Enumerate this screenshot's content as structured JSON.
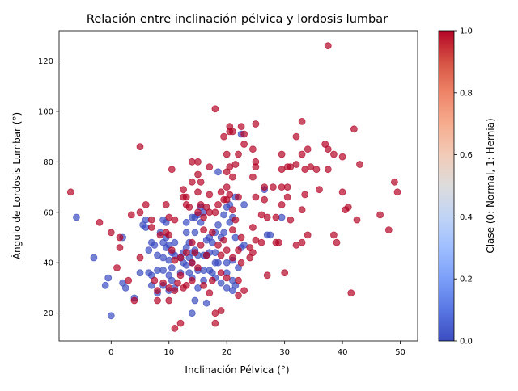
{
  "chart_data": {
    "type": "scatter",
    "title": "Relación entre inclinación pélvica y lordosis lumbar",
    "xlabel": "Inclinación Pélvica (°)",
    "ylabel": "Ángulo de Lordosis Lumbar (°)",
    "xlim": [
      -9,
      53
    ],
    "ylim": [
      9,
      132
    ],
    "xticks": [
      0,
      10,
      20,
      30,
      40,
      50
    ],
    "yticks": [
      20,
      40,
      60,
      80,
      100,
      120
    ],
    "grid": false,
    "colormap": "coolwarm",
    "point_alpha": 0.7,
    "colorbar": {
      "label": "Clase (0: Normal, 1: Hernia)",
      "range": [
        0,
        1
      ],
      "ticks": [
        "0.0",
        "0.2",
        "0.4",
        "0.6",
        "0.8",
        "1.0"
      ],
      "low_color": "#3b4cc0",
      "high_color": "#b40426"
    },
    "series": [
      {
        "name": "0",
        "color": "#3b4cc0",
        "points": [
          [
            -6,
            58
          ],
          [
            -3,
            42
          ],
          [
            -1,
            31
          ],
          [
            -0.5,
            34
          ],
          [
            0,
            19
          ],
          [
            2,
            50
          ],
          [
            2,
            32
          ],
          [
            2.5,
            30
          ],
          [
            4,
            26
          ],
          [
            5,
            36
          ],
          [
            5.5,
            55
          ],
          [
            6,
            57
          ],
          [
            6,
            54
          ],
          [
            6.5,
            45
          ],
          [
            6.5,
            36
          ],
          [
            7,
            48
          ],
          [
            7,
            35
          ],
          [
            7,
            31
          ],
          [
            7.5,
            47
          ],
          [
            8,
            43
          ],
          [
            8,
            37
          ],
          [
            8,
            28
          ],
          [
            8.5,
            52
          ],
          [
            9,
            57
          ],
          [
            9,
            48
          ],
          [
            9,
            42
          ],
          [
            9,
            31
          ],
          [
            9.5,
            56
          ],
          [
            9.5,
            50
          ],
          [
            9.5,
            46
          ],
          [
            10,
            47
          ],
          [
            10,
            41
          ],
          [
            10,
            35
          ],
          [
            10,
            29
          ],
          [
            10.5,
            44
          ],
          [
            10.5,
            38
          ],
          [
            10.5,
            33
          ],
          [
            11,
            43
          ],
          [
            11,
            30
          ],
          [
            12,
            42
          ],
          [
            12,
            36
          ],
          [
            12.5,
            40
          ],
          [
            12.5,
            44
          ],
          [
            13,
            52
          ],
          [
            13,
            46
          ],
          [
            13,
            56
          ],
          [
            13.5,
            48
          ],
          [
            13.5,
            42
          ],
          [
            13.5,
            36
          ],
          [
            14,
            58
          ],
          [
            14,
            44
          ],
          [
            14,
            40
          ],
          [
            14,
            34
          ],
          [
            14,
            20
          ],
          [
            14.5,
            58
          ],
          [
            14.5,
            52
          ],
          [
            14.5,
            45
          ],
          [
            14.5,
            25
          ],
          [
            15,
            59
          ],
          [
            15,
            43
          ],
          [
            15,
            37
          ],
          [
            15,
            30
          ],
          [
            15.5,
            62
          ],
          [
            15.5,
            56
          ],
          [
            16,
            60
          ],
          [
            16,
            43
          ],
          [
            16,
            37
          ],
          [
            16,
            33
          ],
          [
            16.5,
            43
          ],
          [
            16.5,
            24
          ],
          [
            17,
            50
          ],
          [
            17,
            44
          ],
          [
            17,
            37
          ],
          [
            17.5,
            48
          ],
          [
            17.5,
            36
          ],
          [
            18,
            52
          ],
          [
            18,
            44
          ],
          [
            18,
            40
          ],
          [
            18,
            34
          ],
          [
            18.5,
            76
          ],
          [
            18.5,
            55
          ],
          [
            18.5,
            40
          ],
          [
            19,
            50
          ],
          [
            19,
            32
          ],
          [
            19.5,
            59
          ],
          [
            19.5,
            52
          ],
          [
            20,
            62
          ],
          [
            20,
            40
          ],
          [
            20,
            36
          ],
          [
            20,
            30
          ],
          [
            20.5,
            63
          ],
          [
            20.5,
            56
          ],
          [
            21,
            58
          ],
          [
            21,
            41
          ],
          [
            21,
            33
          ],
          [
            21,
            29
          ],
          [
            21.5,
            66
          ],
          [
            21.5,
            50
          ],
          [
            21.5,
            31
          ],
          [
            22,
            38
          ],
          [
            22.5,
            91
          ],
          [
            22.5,
            46
          ],
          [
            23,
            47
          ],
          [
            23,
            63
          ],
          [
            26.5,
            69
          ],
          [
            27,
            51
          ],
          [
            27.5,
            51
          ],
          [
            29.5,
            58
          ],
          [
            16.5,
            49
          ],
          [
            11,
            48
          ],
          [
            13,
            39
          ],
          [
            9,
            37
          ]
        ]
      },
      {
        "name": "1",
        "color": "#b40426",
        "points": [
          [
            -7,
            68
          ],
          [
            -2,
            56
          ],
          [
            0,
            52
          ],
          [
            1,
            38
          ],
          [
            1.5,
            46
          ],
          [
            1.5,
            50
          ],
          [
            3,
            33
          ],
          [
            3.5,
            59
          ],
          [
            4,
            25
          ],
          [
            5,
            86
          ],
          [
            5,
            42
          ],
          [
            5,
            60
          ],
          [
            6,
            63
          ],
          [
            7,
            57
          ],
          [
            7,
            54
          ],
          [
            7.5,
            33
          ],
          [
            8,
            25
          ],
          [
            8,
            29
          ],
          [
            8.5,
            51
          ],
          [
            9,
            32
          ],
          [
            9.5,
            52
          ],
          [
            9.5,
            63
          ],
          [
            10,
            58
          ],
          [
            10,
            51
          ],
          [
            10,
            25
          ],
          [
            10,
            30
          ],
          [
            10.5,
            77
          ],
          [
            10.5,
            45
          ],
          [
            11,
            14
          ],
          [
            11,
            57
          ],
          [
            11,
            29
          ],
          [
            11.5,
            32
          ],
          [
            12,
            16
          ],
          [
            12,
            42
          ],
          [
            12,
            35
          ],
          [
            12.5,
            66
          ],
          [
            12.5,
            69
          ],
          [
            12.5,
            30
          ],
          [
            13,
            66
          ],
          [
            13,
            63
          ],
          [
            13,
            31
          ],
          [
            13.5,
            62
          ],
          [
            14,
            80
          ],
          [
            14,
            48
          ],
          [
            14,
            72
          ],
          [
            14,
            40
          ],
          [
            14.5,
            44
          ],
          [
            15,
            80
          ],
          [
            15,
            68
          ],
          [
            15,
            75
          ],
          [
            15,
            60
          ],
          [
            15,
            38
          ],
          [
            15.5,
            72
          ],
          [
            15.5,
            63
          ],
          [
            15.5,
            47
          ],
          [
            16,
            58
          ],
          [
            16,
            53
          ],
          [
            16,
            31
          ],
          [
            16.5,
            62
          ],
          [
            16.5,
            43
          ],
          [
            17,
            78
          ],
          [
            17,
            67
          ],
          [
            17,
            60
          ],
          [
            17,
            28
          ],
          [
            17.5,
            52
          ],
          [
            17.5,
            33
          ],
          [
            18,
            101
          ],
          [
            18,
            60
          ],
          [
            18,
            16
          ],
          [
            18,
            20
          ],
          [
            18.5,
            63
          ],
          [
            18.5,
            47
          ],
          [
            19,
            68
          ],
          [
            19,
            43
          ],
          [
            19,
            36
          ],
          [
            19,
            21
          ],
          [
            19.5,
            90
          ],
          [
            19.5,
            65
          ],
          [
            19.5,
            49
          ],
          [
            20,
            83
          ],
          [
            20,
            76
          ],
          [
            20,
            70
          ],
          [
            20,
            65
          ],
          [
            20,
            45
          ],
          [
            20,
            34
          ],
          [
            20.5,
            94
          ],
          [
            20.5,
            92
          ],
          [
            20.5,
            78
          ],
          [
            20.5,
            67
          ],
          [
            21,
            92
          ],
          [
            21,
            74
          ],
          [
            21,
            61
          ],
          [
            21,
            53
          ],
          [
            21,
            42
          ],
          [
            21.5,
            79
          ],
          [
            21.5,
            57
          ],
          [
            22,
            83
          ],
          [
            22,
            66
          ],
          [
            22,
            45
          ],
          [
            22,
            33
          ],
          [
            22,
            27
          ],
          [
            22.5,
            94
          ],
          [
            22.5,
            50
          ],
          [
            22.5,
            40
          ],
          [
            23,
            87
          ],
          [
            23,
            91
          ],
          [
            23,
            29
          ],
          [
            24,
            46
          ],
          [
            24,
            42
          ],
          [
            24.5,
            85
          ],
          [
            24.5,
            74
          ],
          [
            24.5,
            54
          ],
          [
            24.5,
            44
          ],
          [
            25,
            95
          ],
          [
            25,
            80
          ],
          [
            25,
            78
          ],
          [
            25,
            66
          ],
          [
            25,
            49
          ],
          [
            26,
            59
          ],
          [
            26,
            48
          ],
          [
            26.5,
            70
          ],
          [
            26.5,
            65
          ],
          [
            27,
            35
          ],
          [
            27,
            58
          ],
          [
            28,
            70
          ],
          [
            28.5,
            58
          ],
          [
            28.5,
            48
          ],
          [
            29,
            48
          ],
          [
            29.5,
            77
          ],
          [
            29.5,
            83
          ],
          [
            29.5,
            70
          ],
          [
            29.5,
            63
          ],
          [
            30,
            36
          ],
          [
            30.5,
            78
          ],
          [
            30.5,
            70
          ],
          [
            30.5,
            66
          ],
          [
            31,
            78
          ],
          [
            31,
            57
          ],
          [
            32,
            90
          ],
          [
            32,
            79
          ],
          [
            32,
            47
          ],
          [
            33,
            96
          ],
          [
            33,
            83
          ],
          [
            33,
            61
          ],
          [
            33,
            48
          ],
          [
            33.5,
            77
          ],
          [
            33.5,
            67
          ],
          [
            34,
            85
          ],
          [
            34,
            51
          ],
          [
            34.5,
            78
          ],
          [
            35.5,
            77
          ],
          [
            36,
            69
          ],
          [
            37,
            87
          ],
          [
            37.5,
            85
          ],
          [
            37.5,
            77
          ],
          [
            37.5,
            126
          ],
          [
            38.5,
            83
          ],
          [
            38.5,
            51
          ],
          [
            39,
            48
          ],
          [
            40,
            82
          ],
          [
            40,
            68
          ],
          [
            40.5,
            61
          ],
          [
            41,
            62
          ],
          [
            41.5,
            28
          ],
          [
            42,
            93
          ],
          [
            42.5,
            57
          ],
          [
            43,
            79
          ],
          [
            46.5,
            59
          ],
          [
            48,
            53
          ],
          [
            49,
            72
          ],
          [
            49.5,
            68
          ],
          [
            13,
            44
          ],
          [
            11,
            41
          ],
          [
            14,
            33
          ]
        ]
      }
    ]
  }
}
